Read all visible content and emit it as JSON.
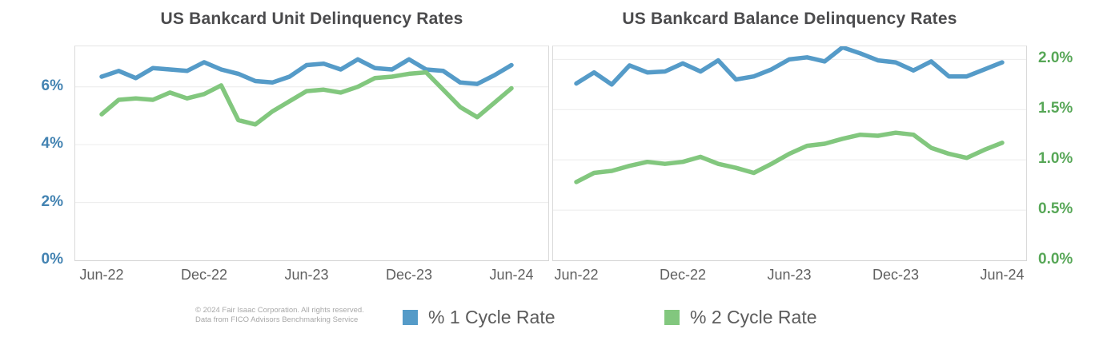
{
  "footer": {
    "line1": "© 2024 Fair Isaac Corporation. All rights reserved.",
    "line2": "Data from FICO Advisors Benchmarking Service"
  },
  "legend": {
    "items": [
      {
        "label": "% 1 Cycle Rate",
        "color": "#559bc8"
      },
      {
        "label": "% 2 Cycle Rate",
        "color": "#82c77e"
      }
    ]
  },
  "colors": {
    "blue_line": "#559bc8",
    "green_line": "#82c77e",
    "blue_axis_text": "#4383b2",
    "green_axis_text": "#57a757",
    "grid": "#ececec",
    "border": "#d9d9d9",
    "title_text": "#4b4b4d",
    "x_label_text": "#5f5f5f",
    "footer_text": "#a8a8a8",
    "legend_text": "#5c5c5c"
  },
  "chart_data": [
    {
      "type": "line",
      "title": "US Bankcard Unit Delinquency Rates",
      "x": [
        "Jun-22",
        "Jul-22",
        "Aug-22",
        "Sep-22",
        "Oct-22",
        "Nov-22",
        "Dec-22",
        "Jan-23",
        "Feb-23",
        "Mar-23",
        "Apr-23",
        "May-23",
        "Jun-23",
        "Jul-23",
        "Aug-23",
        "Sep-23",
        "Oct-23",
        "Nov-23",
        "Dec-23",
        "Jan-24",
        "Feb-24",
        "Mar-24",
        "Apr-24",
        "May-24",
        "Jun-24"
      ],
      "x_tick_indices": [
        0,
        6,
        12,
        18,
        24
      ],
      "x_tick_labels": [
        "Jun-22",
        "Dec-22",
        "Jun-23",
        "Dec-23",
        "Jun-24"
      ],
      "y_axis_side": "left",
      "y_axis_text_color": "#4383b2",
      "ylim": [
        0,
        7.4
      ],
      "grid": true,
      "legend_position": "bottom",
      "y_ticks": [
        {
          "value": 0,
          "label": "0%"
        },
        {
          "value": 2,
          "label": "2%"
        },
        {
          "value": 4,
          "label": "4%"
        },
        {
          "value": 6,
          "label": "6%"
        }
      ],
      "series": [
        {
          "name": "% 1 Cycle Rate",
          "color": "#559bc8",
          "values": [
            6.35,
            6.55,
            6.3,
            6.65,
            6.6,
            6.55,
            6.85,
            6.6,
            6.45,
            6.2,
            6.15,
            6.35,
            6.75,
            6.8,
            6.6,
            6.95,
            6.65,
            6.6,
            6.95,
            6.6,
            6.55,
            6.15,
            6.1,
            6.4,
            6.75
          ]
        },
        {
          "name": "% 2 Cycle Rate",
          "color": "#82c77e",
          "values": [
            5.05,
            5.55,
            5.6,
            5.55,
            5.8,
            5.6,
            5.75,
            6.05,
            4.85,
            4.7,
            5.15,
            5.5,
            5.85,
            5.9,
            5.8,
            6.0,
            6.3,
            6.35,
            6.45,
            6.5,
            5.9,
            5.3,
            4.95,
            5.45,
            5.95
          ]
        }
      ]
    },
    {
      "type": "line",
      "title": "US Bankcard Balance Delinquency Rates",
      "x": [
        "Jun-22",
        "Jul-22",
        "Aug-22",
        "Sep-22",
        "Oct-22",
        "Nov-22",
        "Dec-22",
        "Jan-23",
        "Feb-23",
        "Mar-23",
        "Apr-23",
        "May-23",
        "Jun-23",
        "Jul-23",
        "Aug-23",
        "Sep-23",
        "Oct-23",
        "Nov-23",
        "Dec-23",
        "Jan-24",
        "Feb-24",
        "Mar-24",
        "Apr-24",
        "May-24",
        "Jun-24"
      ],
      "x_tick_indices": [
        0,
        6,
        12,
        18,
        24
      ],
      "x_tick_labels": [
        "Jun-22",
        "Dec-22",
        "Jun-23",
        "Dec-23",
        "Jun-24"
      ],
      "y_axis_side": "right",
      "y_axis_text_color": "#57a757",
      "ylim": [
        0,
        2.13
      ],
      "grid": true,
      "legend_position": "bottom",
      "y_ticks": [
        {
          "value": 0,
          "label": "0.0%"
        },
        {
          "value": 0.5,
          "label": "0.5%"
        },
        {
          "value": 1,
          "label": "1.0%"
        },
        {
          "value": 1.5,
          "label": "1.5%"
        },
        {
          "value": 2,
          "label": "2.0%"
        }
      ],
      "series": [
        {
          "name": "% 1 Cycle Rate",
          "color": "#559bc8",
          "values": [
            1.76,
            1.87,
            1.75,
            1.94,
            1.87,
            1.88,
            1.96,
            1.88,
            1.99,
            1.8,
            1.83,
            1.9,
            2.0,
            2.02,
            1.98,
            2.12,
            2.06,
            1.99,
            1.97,
            1.89,
            1.98,
            1.83,
            1.83,
            1.9,
            1.97
          ]
        },
        {
          "name": "% 2 Cycle Rate",
          "color": "#82c77e",
          "values": [
            0.78,
            0.87,
            0.89,
            0.94,
            0.98,
            0.96,
            0.98,
            1.03,
            0.96,
            0.92,
            0.87,
            0.96,
            1.06,
            1.14,
            1.16,
            1.21,
            1.25,
            1.24,
            1.27,
            1.25,
            1.12,
            1.06,
            1.02,
            1.1,
            1.17
          ]
        }
      ]
    }
  ]
}
